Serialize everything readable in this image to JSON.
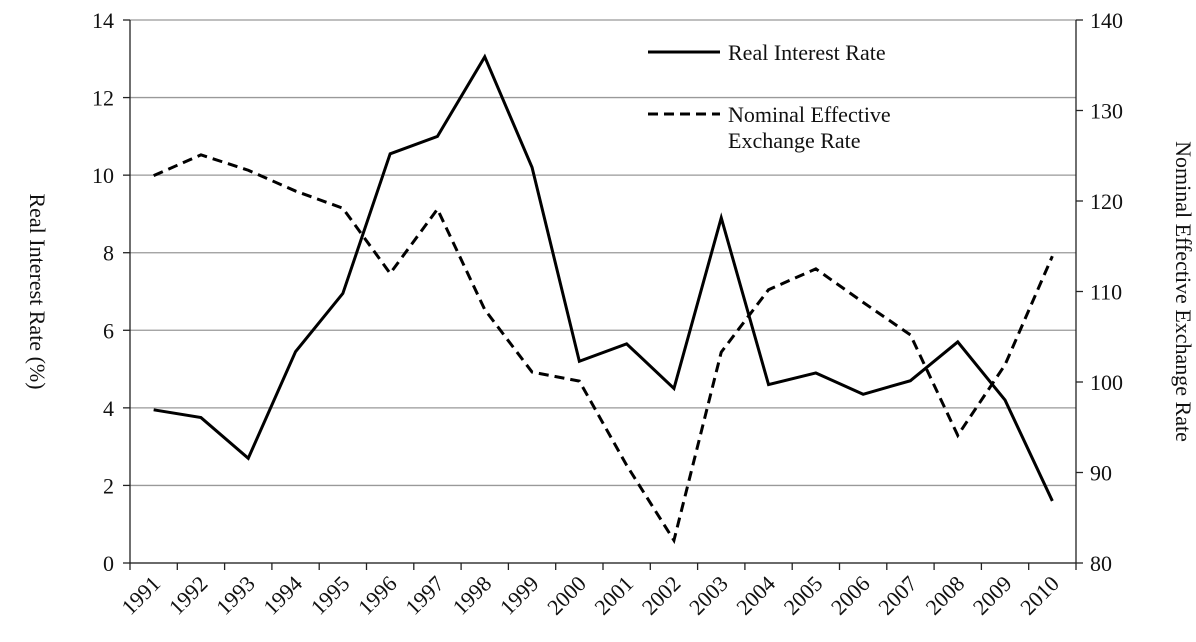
{
  "chart_data": {
    "type": "line",
    "categories": [
      "1991",
      "1992",
      "1993",
      "1994",
      "1995",
      "1996",
      "1997",
      "1998",
      "1999",
      "2000",
      "2001",
      "2002",
      "2003",
      "2004",
      "2005",
      "2006",
      "2007",
      "2008",
      "2009",
      "2010"
    ],
    "series": [
      {
        "name": "Real Interest Rate",
        "color": "#000000",
        "dash": "solid",
        "values": [
          3.95,
          3.75,
          2.7,
          5.45,
          6.95,
          10.55,
          11.0,
          13.05,
          10.2,
          5.2,
          5.65,
          4.5,
          8.9,
          4.6,
          4.9,
          4.35,
          4.7,
          5.7,
          4.2,
          1.6
        ]
      },
      {
        "name": "Nominal Effective Exchange Rate",
        "color": "#000000",
        "dash": "dashed",
        "axis": "y2",
        "values": [
          122.8,
          125.1,
          123.4,
          121.1,
          119.2,
          112.0,
          119.1,
          108.0,
          101.1,
          100.1,
          90.8,
          82.5,
          103.3,
          110.2,
          112.5,
          108.8,
          105.2,
          94.1,
          101.9,
          113.9
        ]
      }
    ],
    "ylabel": "Real Interest Rate (%)",
    "y2label": "Nominal Effective Exchange Rate",
    "ylim": [
      0,
      14
    ],
    "yticks": [
      0,
      2,
      4,
      6,
      8,
      10,
      12,
      14
    ],
    "y2lim": [
      80,
      140
    ],
    "y2ticks": [
      80,
      90,
      100,
      110,
      120,
      130,
      140
    ],
    "grid": true,
    "legend": "upper right"
  }
}
